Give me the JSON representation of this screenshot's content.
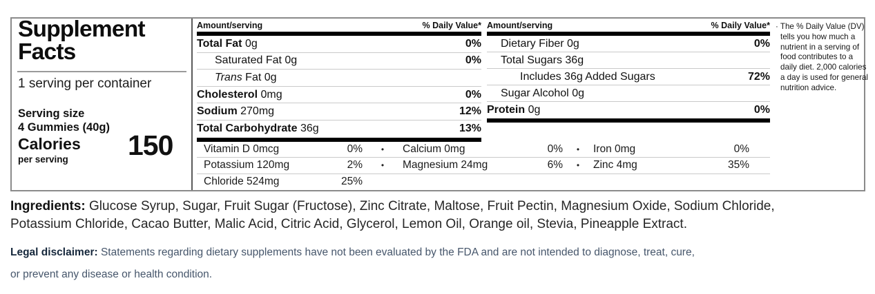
{
  "label": {
    "title": "Supplement Facts",
    "servings": "1 serving per container",
    "serving_size_label": "Serving size",
    "serving_size_value": "4 Gummies (40g)",
    "calories_label": "Calories",
    "calories_sublabel": "per serving",
    "calories_value": "150",
    "column_header": {
      "amount": "Amount/serving",
      "daily_value": "% Daily Value*"
    },
    "left_rows": [
      {
        "name": "Total Fat",
        "amount": "0g",
        "dv": "0%"
      },
      {
        "name": "Saturated Fat",
        "amount": "0g",
        "dv": "0%"
      },
      {
        "name": "Trans",
        "amount": "Fat 0g",
        "dv": ""
      },
      {
        "name": "Cholesterol",
        "amount": "0mg",
        "dv": "0%"
      },
      {
        "name": "Sodium",
        "amount": "270mg",
        "dv": "12%"
      },
      {
        "name": "Total Carbohydrate",
        "amount": "36g",
        "dv": "13%"
      }
    ],
    "right_rows": [
      {
        "name": "Dietary Fiber",
        "amount": "0g",
        "dv": "0%"
      },
      {
        "name": "Total Sugars",
        "amount": "36g",
        "dv": ""
      },
      {
        "name": "Includes 36g Added Sugars",
        "amount": "",
        "dv": "72%"
      },
      {
        "name": "Sugar Alcohol",
        "amount": "0g",
        "dv": ""
      },
      {
        "name": "Protein",
        "amount": "0g",
        "dv": "0%"
      }
    ],
    "micronutrients": {
      "bullet": "•",
      "rows": [
        {
          "cells": [
            {
              "name": "Vitamin D 0mcg",
              "dv": "0%"
            },
            {
              "name": "Calcium 0mg",
              "dv": "0%"
            },
            {
              "name": "Iron 0mg",
              "dv": "0%"
            }
          ]
        },
        {
          "cells": [
            {
              "name": "Potassium 120mg",
              "dv": "2%"
            },
            {
              "name": "Magnesium 24mg",
              "dv": "6%"
            },
            {
              "name": "Zinc 4mg",
              "dv": "35%"
            }
          ]
        },
        {
          "cells": [
            {
              "name": "Chloride 524mg",
              "dv": "25%"
            },
            {
              "name": "",
              "dv": ""
            },
            {
              "name": "",
              "dv": ""
            }
          ]
        }
      ]
    },
    "footnote": {
      "bullet": "·",
      "text": "The % Daily Value (DV) tells you how much a nutrient in a serving of food contributes to a daily diet. 2,000 calories a day is used for general nutrition advice."
    }
  },
  "ingredients": {
    "label": "Ingredients:",
    "text": "Glucose Syrup, Sugar, Fruit Sugar (Fructose), Zinc Citrate, Maltose, Fruit Pectin, Magnesium Oxide, Sodium Chloride, Potassium Chloride, Cacao Butter, Malic Acid, Citric Acid, Glycerol, Lemon Oil, Orange oil, Stevia, Pineapple Extract."
  },
  "legal": {
    "label": "Legal disclaimer:",
    "text": "Statements regarding dietary supplements have not been evaluated by the FDA and are not intended to diagnose, treat, cure, or prevent any disease or health condition."
  },
  "colors": {
    "bar": "#000000",
    "panel_border": "#8a8a8a",
    "row_divider": "#c9c9c9",
    "legal_text": "#46566b",
    "legal_label": "#16283c"
  }
}
